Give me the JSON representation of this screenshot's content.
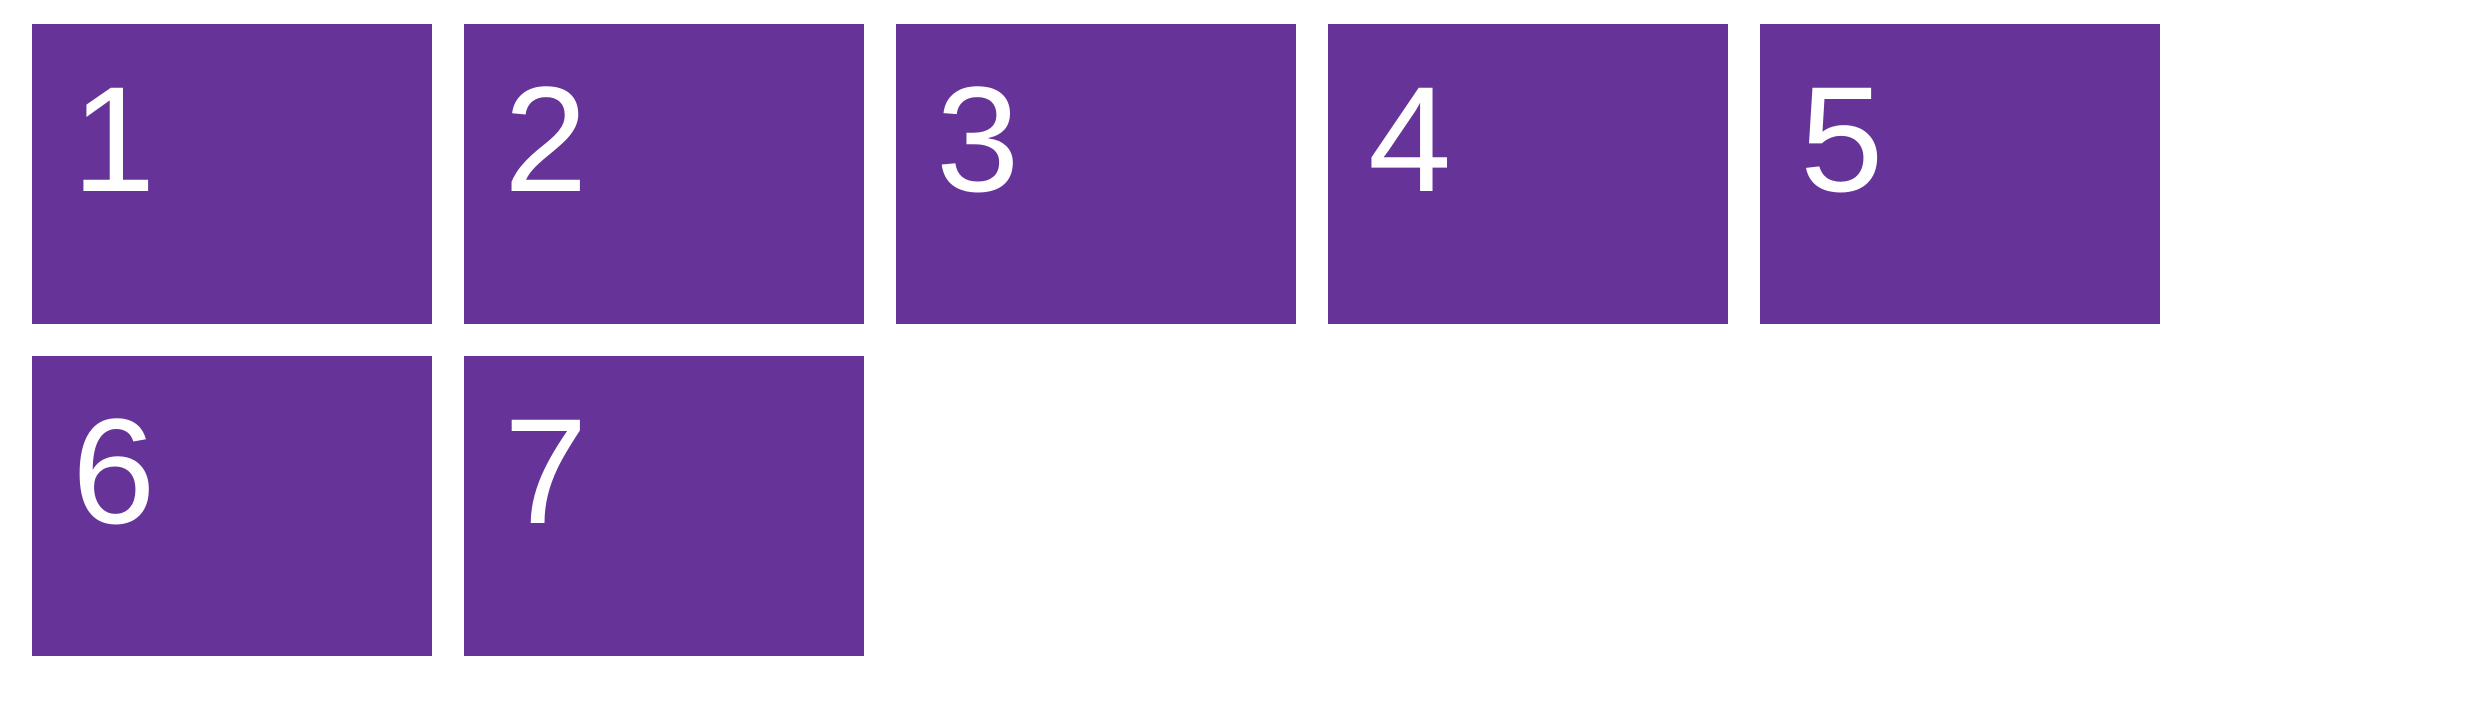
{
  "colors": {
    "tile_background": "#663399",
    "tile_text": "#ffffff",
    "page_background": "#ffffff"
  },
  "tiles": [
    {
      "label": "1"
    },
    {
      "label": "2"
    },
    {
      "label": "3"
    },
    {
      "label": "4"
    },
    {
      "label": "5"
    },
    {
      "label": "6"
    },
    {
      "label": "7"
    }
  ]
}
